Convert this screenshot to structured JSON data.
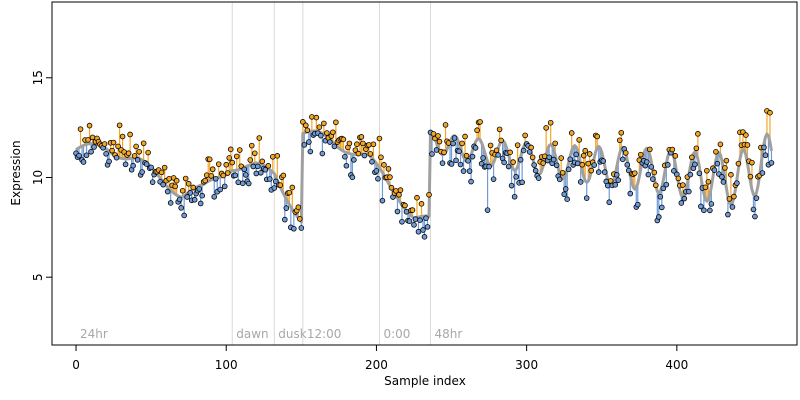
{
  "chart_data": {
    "type": "scatter",
    "xlabel": "Sample index",
    "ylabel": "Expression",
    "xlim": [
      -16,
      480
    ],
    "ylim": [
      1.6,
      18.8
    ],
    "x_ticks": [
      0,
      100,
      200,
      300,
      400
    ],
    "y_ticks": [
      5,
      10,
      15
    ],
    "segments": [
      {
        "x": 0,
        "label": "24hr"
      },
      {
        "x": 104,
        "label": "dawn"
      },
      {
        "x": 132,
        "label": "dusk"
      },
      {
        "x": 151,
        "label": "12:00"
      },
      {
        "x": 202,
        "label": "0:00"
      },
      {
        "x": 236,
        "label": "48hr"
      }
    ],
    "n_points": 464,
    "colors": {
      "above_fit": "#f5a623",
      "below_fit": "#6f9bd8",
      "fit_line": "#a0a0a0",
      "guide_line": "#d9d9d9",
      "point_edge": "#000000"
    }
  },
  "fit_knots": [
    [
      0,
      11.4
    ],
    [
      20,
      11.5
    ],
    [
      40,
      10.9
    ],
    [
      55,
      10.0
    ],
    [
      70,
      9.2
    ],
    [
      85,
      9.4
    ],
    [
      104,
      10.6
    ],
    [
      120,
      10.5
    ],
    [
      132,
      10.2
    ],
    [
      145,
      8.5
    ],
    [
      150,
      7.8
    ],
    [
      151,
      12.2
    ],
    [
      165,
      12.0
    ],
    [
      180,
      11.5
    ],
    [
      195,
      10.9
    ],
    [
      202,
      10.3
    ],
    [
      215,
      9.1
    ],
    [
      225,
      8.0
    ],
    [
      235,
      7.8
    ],
    [
      236,
      11.8
    ],
    [
      260,
      11.4
    ],
    [
      290,
      11.1
    ],
    [
      320,
      10.8
    ],
    [
      350,
      10.6
    ],
    [
      380,
      10.4
    ],
    [
      410,
      10.1
    ],
    [
      440,
      9.9
    ],
    [
      460,
      10.8
    ]
  ],
  "oscillation": {
    "start": 236,
    "period": 16,
    "amplitude_start": 0.5,
    "amplitude_end": 1.4
  }
}
